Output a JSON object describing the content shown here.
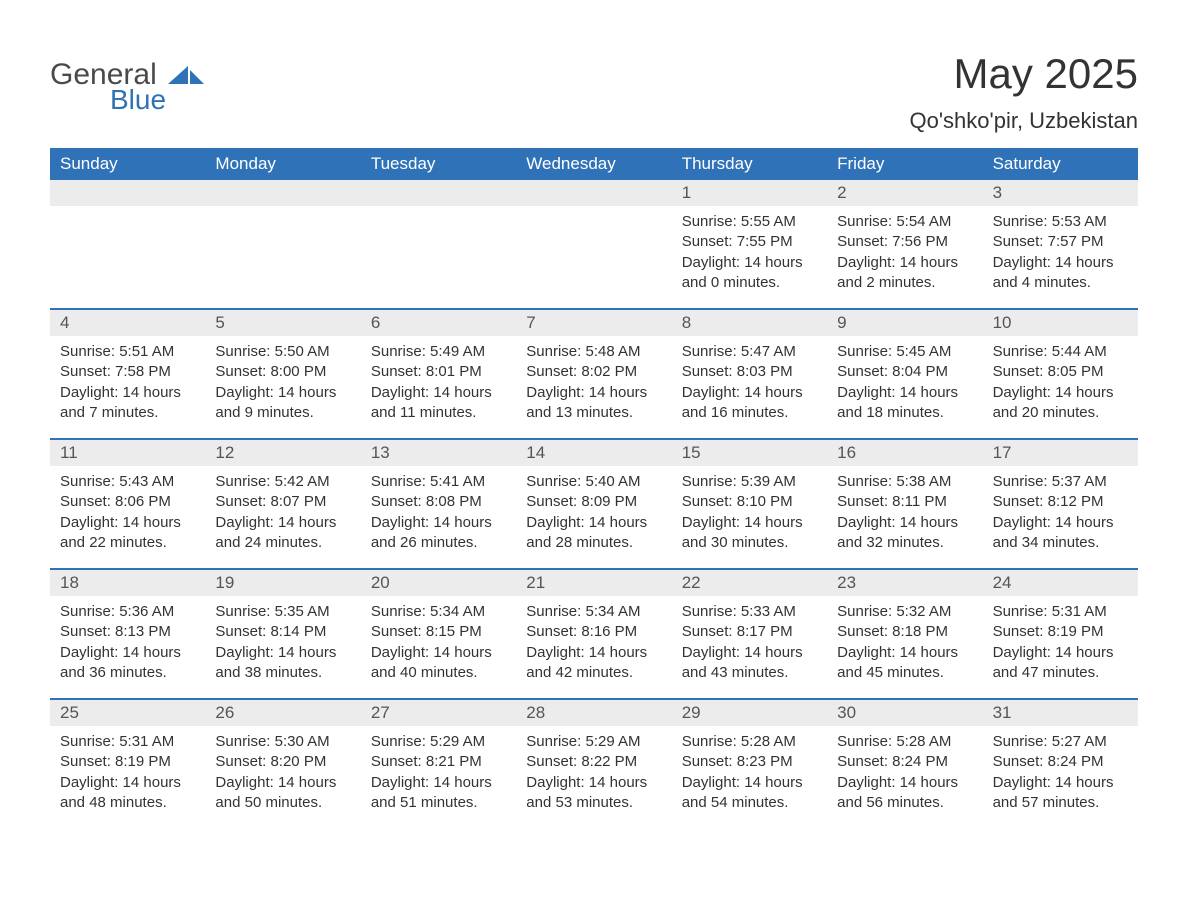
{
  "brand": {
    "word1": "General",
    "word2": "Blue",
    "word1_color": "#4a4a4a",
    "word2_color": "#2f72b8",
    "mark_color": "#2f72b8"
  },
  "title": {
    "month_year": "May 2025",
    "location": "Qo'shko'pir, Uzbekistan",
    "title_fontsize": 42,
    "location_fontsize": 22,
    "title_color": "#333333"
  },
  "calendar": {
    "type": "table",
    "header_bg": "#2f72b8",
    "header_text_color": "#ffffff",
    "daynum_bg": "#ececec",
    "daynum_color": "#555555",
    "week_divider_color": "#2f72b8",
    "body_text_color": "#333333",
    "background_color": "#ffffff",
    "columns": 7,
    "dow_fontsize": 17,
    "body_fontsize": 15,
    "days_of_week": [
      "Sunday",
      "Monday",
      "Tuesday",
      "Wednesday",
      "Thursday",
      "Friday",
      "Saturday"
    ],
    "weeks": [
      [
        {
          "empty": true
        },
        {
          "empty": true
        },
        {
          "empty": true
        },
        {
          "empty": true
        },
        {
          "num": "1",
          "sunrise": "Sunrise: 5:55 AM",
          "sunset": "Sunset: 7:55 PM",
          "daylight1": "Daylight: 14 hours",
          "daylight2": "and 0 minutes."
        },
        {
          "num": "2",
          "sunrise": "Sunrise: 5:54 AM",
          "sunset": "Sunset: 7:56 PM",
          "daylight1": "Daylight: 14 hours",
          "daylight2": "and 2 minutes."
        },
        {
          "num": "3",
          "sunrise": "Sunrise: 5:53 AM",
          "sunset": "Sunset: 7:57 PM",
          "daylight1": "Daylight: 14 hours",
          "daylight2": "and 4 minutes."
        }
      ],
      [
        {
          "num": "4",
          "sunrise": "Sunrise: 5:51 AM",
          "sunset": "Sunset: 7:58 PM",
          "daylight1": "Daylight: 14 hours",
          "daylight2": "and 7 minutes."
        },
        {
          "num": "5",
          "sunrise": "Sunrise: 5:50 AM",
          "sunset": "Sunset: 8:00 PM",
          "daylight1": "Daylight: 14 hours",
          "daylight2": "and 9 minutes."
        },
        {
          "num": "6",
          "sunrise": "Sunrise: 5:49 AM",
          "sunset": "Sunset: 8:01 PM",
          "daylight1": "Daylight: 14 hours",
          "daylight2": "and 11 minutes."
        },
        {
          "num": "7",
          "sunrise": "Sunrise: 5:48 AM",
          "sunset": "Sunset: 8:02 PM",
          "daylight1": "Daylight: 14 hours",
          "daylight2": "and 13 minutes."
        },
        {
          "num": "8",
          "sunrise": "Sunrise: 5:47 AM",
          "sunset": "Sunset: 8:03 PM",
          "daylight1": "Daylight: 14 hours",
          "daylight2": "and 16 minutes."
        },
        {
          "num": "9",
          "sunrise": "Sunrise: 5:45 AM",
          "sunset": "Sunset: 8:04 PM",
          "daylight1": "Daylight: 14 hours",
          "daylight2": "and 18 minutes."
        },
        {
          "num": "10",
          "sunrise": "Sunrise: 5:44 AM",
          "sunset": "Sunset: 8:05 PM",
          "daylight1": "Daylight: 14 hours",
          "daylight2": "and 20 minutes."
        }
      ],
      [
        {
          "num": "11",
          "sunrise": "Sunrise: 5:43 AM",
          "sunset": "Sunset: 8:06 PM",
          "daylight1": "Daylight: 14 hours",
          "daylight2": "and 22 minutes."
        },
        {
          "num": "12",
          "sunrise": "Sunrise: 5:42 AM",
          "sunset": "Sunset: 8:07 PM",
          "daylight1": "Daylight: 14 hours",
          "daylight2": "and 24 minutes."
        },
        {
          "num": "13",
          "sunrise": "Sunrise: 5:41 AM",
          "sunset": "Sunset: 8:08 PM",
          "daylight1": "Daylight: 14 hours",
          "daylight2": "and 26 minutes."
        },
        {
          "num": "14",
          "sunrise": "Sunrise: 5:40 AM",
          "sunset": "Sunset: 8:09 PM",
          "daylight1": "Daylight: 14 hours",
          "daylight2": "and 28 minutes."
        },
        {
          "num": "15",
          "sunrise": "Sunrise: 5:39 AM",
          "sunset": "Sunset: 8:10 PM",
          "daylight1": "Daylight: 14 hours",
          "daylight2": "and 30 minutes."
        },
        {
          "num": "16",
          "sunrise": "Sunrise: 5:38 AM",
          "sunset": "Sunset: 8:11 PM",
          "daylight1": "Daylight: 14 hours",
          "daylight2": "and 32 minutes."
        },
        {
          "num": "17",
          "sunrise": "Sunrise: 5:37 AM",
          "sunset": "Sunset: 8:12 PM",
          "daylight1": "Daylight: 14 hours",
          "daylight2": "and 34 minutes."
        }
      ],
      [
        {
          "num": "18",
          "sunrise": "Sunrise: 5:36 AM",
          "sunset": "Sunset: 8:13 PM",
          "daylight1": "Daylight: 14 hours",
          "daylight2": "and 36 minutes."
        },
        {
          "num": "19",
          "sunrise": "Sunrise: 5:35 AM",
          "sunset": "Sunset: 8:14 PM",
          "daylight1": "Daylight: 14 hours",
          "daylight2": "and 38 minutes."
        },
        {
          "num": "20",
          "sunrise": "Sunrise: 5:34 AM",
          "sunset": "Sunset: 8:15 PM",
          "daylight1": "Daylight: 14 hours",
          "daylight2": "and 40 minutes."
        },
        {
          "num": "21",
          "sunrise": "Sunrise: 5:34 AM",
          "sunset": "Sunset: 8:16 PM",
          "daylight1": "Daylight: 14 hours",
          "daylight2": "and 42 minutes."
        },
        {
          "num": "22",
          "sunrise": "Sunrise: 5:33 AM",
          "sunset": "Sunset: 8:17 PM",
          "daylight1": "Daylight: 14 hours",
          "daylight2": "and 43 minutes."
        },
        {
          "num": "23",
          "sunrise": "Sunrise: 5:32 AM",
          "sunset": "Sunset: 8:18 PM",
          "daylight1": "Daylight: 14 hours",
          "daylight2": "and 45 minutes."
        },
        {
          "num": "24",
          "sunrise": "Sunrise: 5:31 AM",
          "sunset": "Sunset: 8:19 PM",
          "daylight1": "Daylight: 14 hours",
          "daylight2": "and 47 minutes."
        }
      ],
      [
        {
          "num": "25",
          "sunrise": "Sunrise: 5:31 AM",
          "sunset": "Sunset: 8:19 PM",
          "daylight1": "Daylight: 14 hours",
          "daylight2": "and 48 minutes."
        },
        {
          "num": "26",
          "sunrise": "Sunrise: 5:30 AM",
          "sunset": "Sunset: 8:20 PM",
          "daylight1": "Daylight: 14 hours",
          "daylight2": "and 50 minutes."
        },
        {
          "num": "27",
          "sunrise": "Sunrise: 5:29 AM",
          "sunset": "Sunset: 8:21 PM",
          "daylight1": "Daylight: 14 hours",
          "daylight2": "and 51 minutes."
        },
        {
          "num": "28",
          "sunrise": "Sunrise: 5:29 AM",
          "sunset": "Sunset: 8:22 PM",
          "daylight1": "Daylight: 14 hours",
          "daylight2": "and 53 minutes."
        },
        {
          "num": "29",
          "sunrise": "Sunrise: 5:28 AM",
          "sunset": "Sunset: 8:23 PM",
          "daylight1": "Daylight: 14 hours",
          "daylight2": "and 54 minutes."
        },
        {
          "num": "30",
          "sunrise": "Sunrise: 5:28 AM",
          "sunset": "Sunset: 8:24 PM",
          "daylight1": "Daylight: 14 hours",
          "daylight2": "and 56 minutes."
        },
        {
          "num": "31",
          "sunrise": "Sunrise: 5:27 AM",
          "sunset": "Sunset: 8:24 PM",
          "daylight1": "Daylight: 14 hours",
          "daylight2": "and 57 minutes."
        }
      ]
    ]
  }
}
